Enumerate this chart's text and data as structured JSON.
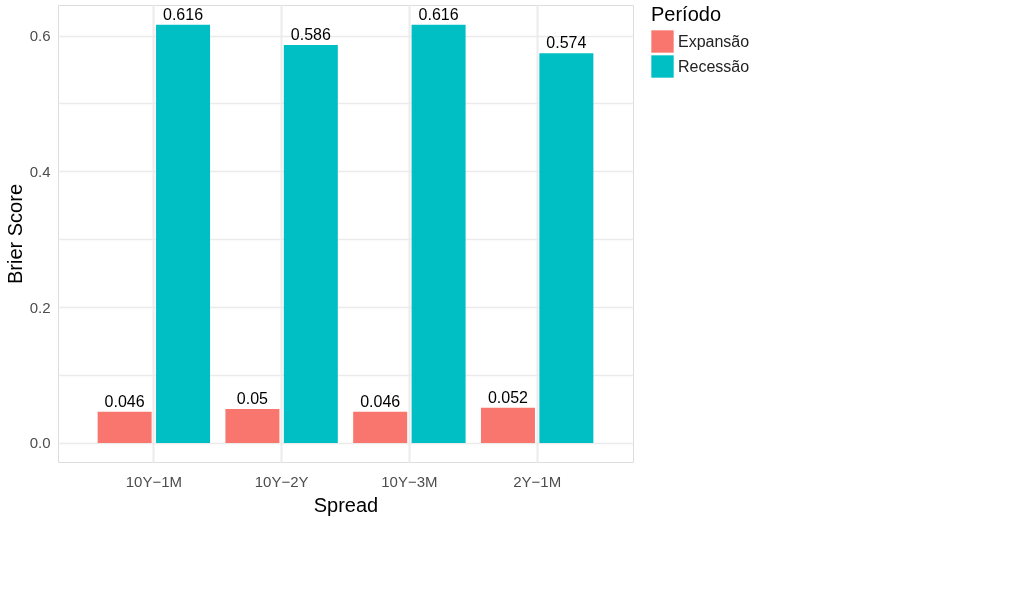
{
  "chart_data": {
    "type": "bar",
    "xlabel": "Spread",
    "ylabel": "Brier Score",
    "legend_title": "Período",
    "categories": [
      "10Y−1M",
      "10Y−2Y",
      "10Y−3M",
      "2Y−1M"
    ],
    "series": [
      {
        "name": "Expansão",
        "color": "#f8766d",
        "values": [
          0.046,
          0.05,
          0.046,
          0.052
        ]
      },
      {
        "name": "Recessão",
        "color": "#00bfc4",
        "values": [
          0.616,
          0.586,
          0.616,
          0.574
        ]
      }
    ],
    "ylim": [
      -0.028,
      0.645
    ],
    "yticks": [
      {
        "value": 0,
        "label": "0.0"
      },
      {
        "value": 0.1,
        "label": null
      },
      {
        "value": 0.2,
        "label": "0.2"
      },
      {
        "value": 0.3,
        "label": null
      },
      {
        "value": 0.4,
        "label": "0.4"
      },
      {
        "value": 0.5,
        "label": null
      },
      {
        "value": 0.6,
        "label": "0.6"
      }
    ],
    "data_labels": true,
    "grid": true,
    "legend": "right"
  }
}
